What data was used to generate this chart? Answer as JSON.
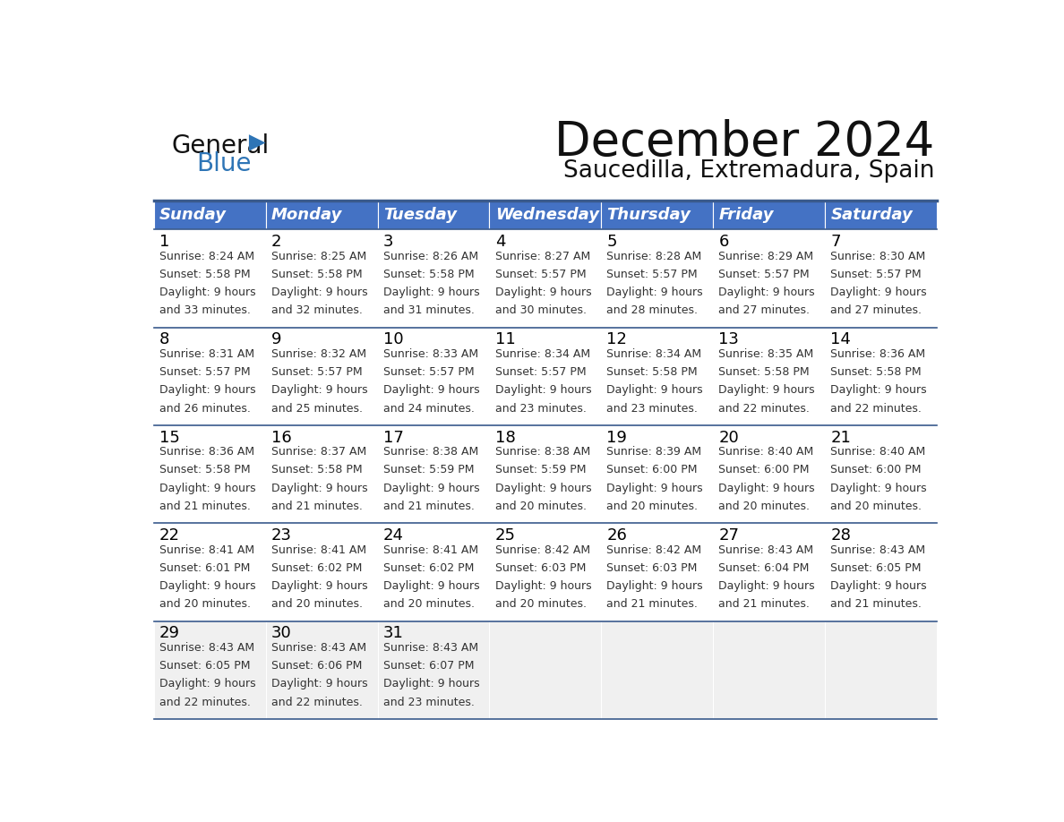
{
  "title": "December 2024",
  "subtitle": "Saucedilla, Extremadura, Spain",
  "header_bg": "#4472C4",
  "header_text_color": "#FFFFFF",
  "days_of_week": [
    "Sunday",
    "Monday",
    "Tuesday",
    "Wednesday",
    "Thursday",
    "Friday",
    "Saturday"
  ],
  "row_bg_colors": [
    "#FFFFFF",
    "#FFFFFF",
    "#FFFFFF",
    "#FFFFFF",
    "#F0F0F0"
  ],
  "cell_border_color": "#3A5A8C",
  "day_number_color": "#000000",
  "info_text_color": "#333333",
  "logo_text_color": "#1a1a1a",
  "logo_blue_color": "#2E75B6",
  "logo_triangle_color": "#2E75B6",
  "calendar_data": [
    [
      {
        "day": 1,
        "sunrise": "8:24 AM",
        "sunset": "5:58 PM",
        "daylight": "9 hours and 33 minutes"
      },
      {
        "day": 2,
        "sunrise": "8:25 AM",
        "sunset": "5:58 PM",
        "daylight": "9 hours and 32 minutes"
      },
      {
        "day": 3,
        "sunrise": "8:26 AM",
        "sunset": "5:58 PM",
        "daylight": "9 hours and 31 minutes"
      },
      {
        "day": 4,
        "sunrise": "8:27 AM",
        "sunset": "5:57 PM",
        "daylight": "9 hours and 30 minutes"
      },
      {
        "day": 5,
        "sunrise": "8:28 AM",
        "sunset": "5:57 PM",
        "daylight": "9 hours and 28 minutes"
      },
      {
        "day": 6,
        "sunrise": "8:29 AM",
        "sunset": "5:57 PM",
        "daylight": "9 hours and 27 minutes"
      },
      {
        "day": 7,
        "sunrise": "8:30 AM",
        "sunset": "5:57 PM",
        "daylight": "9 hours and 27 minutes"
      }
    ],
    [
      {
        "day": 8,
        "sunrise": "8:31 AM",
        "sunset": "5:57 PM",
        "daylight": "9 hours and 26 minutes"
      },
      {
        "day": 9,
        "sunrise": "8:32 AM",
        "sunset": "5:57 PM",
        "daylight": "9 hours and 25 minutes"
      },
      {
        "day": 10,
        "sunrise": "8:33 AM",
        "sunset": "5:57 PM",
        "daylight": "9 hours and 24 minutes"
      },
      {
        "day": 11,
        "sunrise": "8:34 AM",
        "sunset": "5:57 PM",
        "daylight": "9 hours and 23 minutes"
      },
      {
        "day": 12,
        "sunrise": "8:34 AM",
        "sunset": "5:58 PM",
        "daylight": "9 hours and 23 minutes"
      },
      {
        "day": 13,
        "sunrise": "8:35 AM",
        "sunset": "5:58 PM",
        "daylight": "9 hours and 22 minutes"
      },
      {
        "day": 14,
        "sunrise": "8:36 AM",
        "sunset": "5:58 PM",
        "daylight": "9 hours and 22 minutes"
      }
    ],
    [
      {
        "day": 15,
        "sunrise": "8:36 AM",
        "sunset": "5:58 PM",
        "daylight": "9 hours and 21 minutes"
      },
      {
        "day": 16,
        "sunrise": "8:37 AM",
        "sunset": "5:58 PM",
        "daylight": "9 hours and 21 minutes"
      },
      {
        "day": 17,
        "sunrise": "8:38 AM",
        "sunset": "5:59 PM",
        "daylight": "9 hours and 21 minutes"
      },
      {
        "day": 18,
        "sunrise": "8:38 AM",
        "sunset": "5:59 PM",
        "daylight": "9 hours and 20 minutes"
      },
      {
        "day": 19,
        "sunrise": "8:39 AM",
        "sunset": "6:00 PM",
        "daylight": "9 hours and 20 minutes"
      },
      {
        "day": 20,
        "sunrise": "8:40 AM",
        "sunset": "6:00 PM",
        "daylight": "9 hours and 20 minutes"
      },
      {
        "day": 21,
        "sunrise": "8:40 AM",
        "sunset": "6:00 PM",
        "daylight": "9 hours and 20 minutes"
      }
    ],
    [
      {
        "day": 22,
        "sunrise": "8:41 AM",
        "sunset": "6:01 PM",
        "daylight": "9 hours and 20 minutes"
      },
      {
        "day": 23,
        "sunrise": "8:41 AM",
        "sunset": "6:02 PM",
        "daylight": "9 hours and 20 minutes"
      },
      {
        "day": 24,
        "sunrise": "8:41 AM",
        "sunset": "6:02 PM",
        "daylight": "9 hours and 20 minutes"
      },
      {
        "day": 25,
        "sunrise": "8:42 AM",
        "sunset": "6:03 PM",
        "daylight": "9 hours and 20 minutes"
      },
      {
        "day": 26,
        "sunrise": "8:42 AM",
        "sunset": "6:03 PM",
        "daylight": "9 hours and 21 minutes"
      },
      {
        "day": 27,
        "sunrise": "8:43 AM",
        "sunset": "6:04 PM",
        "daylight": "9 hours and 21 minutes"
      },
      {
        "day": 28,
        "sunrise": "8:43 AM",
        "sunset": "6:05 PM",
        "daylight": "9 hours and 21 minutes"
      }
    ],
    [
      {
        "day": 29,
        "sunrise": "8:43 AM",
        "sunset": "6:05 PM",
        "daylight": "9 hours and 22 minutes"
      },
      {
        "day": 30,
        "sunrise": "8:43 AM",
        "sunset": "6:06 PM",
        "daylight": "9 hours and 22 minutes"
      },
      {
        "day": 31,
        "sunrise": "8:43 AM",
        "sunset": "6:07 PM",
        "daylight": "9 hours and 23 minutes"
      },
      null,
      null,
      null,
      null
    ]
  ]
}
